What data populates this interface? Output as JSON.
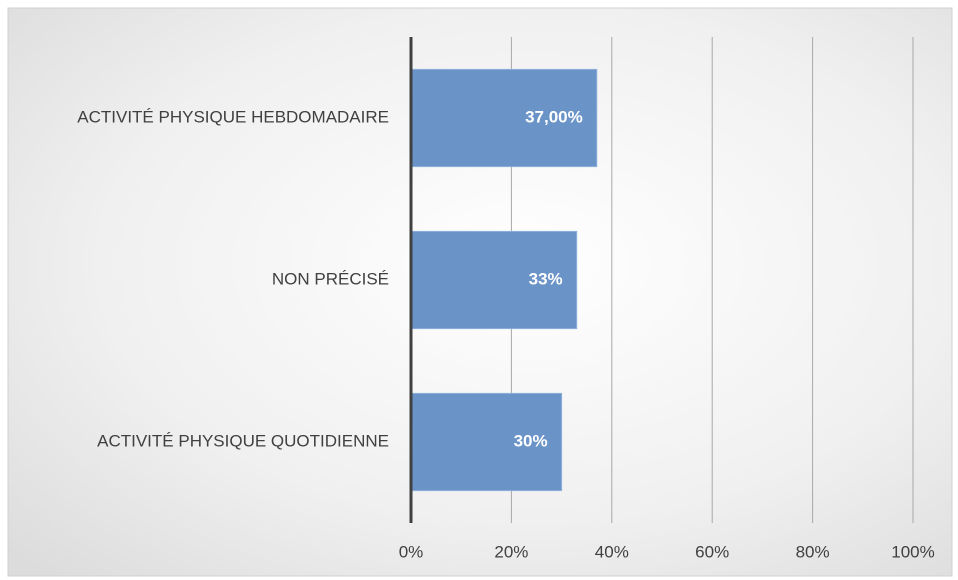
{
  "chart_data": {
    "type": "barh",
    "categories": [
      "ACTIVITÉ PHYSIQUE HEBDOMADAIRE",
      "NON PRÉCISÉ",
      "ACTIVITÉ PHYSIQUE QUOTIDIENNE"
    ],
    "values": [
      37,
      33,
      30
    ],
    "value_labels": [
      "37,00%",
      "33%",
      "30%"
    ],
    "color": "#6a93c8",
    "xlim": [
      0,
      100
    ],
    "xticks": [
      {
        "value": 0,
        "label": "0%"
      },
      {
        "value": 20,
        "label": "20%"
      },
      {
        "value": 40,
        "label": "40%"
      },
      {
        "value": 60,
        "label": "60%"
      },
      {
        "value": 80,
        "label": "80%"
      },
      {
        "value": 100,
        "label": "100%"
      }
    ],
    "grid": true
  }
}
